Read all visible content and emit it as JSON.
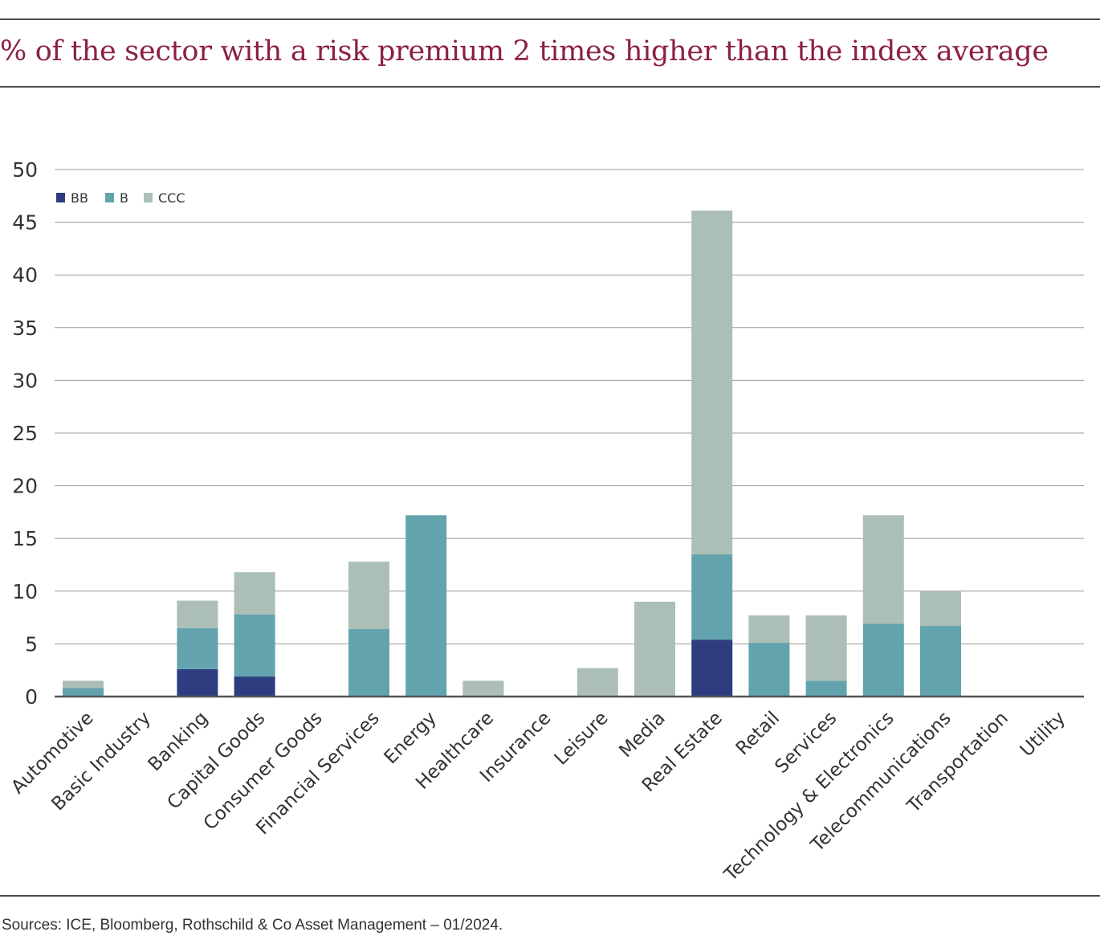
{
  "title": "% of the sector with a risk premium 2 times higher than the index average",
  "source": "Sources: ICE, Bloomberg, Rothschild & Co Asset Management – 01/2024.",
  "colors": {
    "title": "#8b1f47",
    "BB": "#2e3c80",
    "B": "#62a3ad",
    "CCC": "#abbfb6",
    "grid": "#9a9a9a"
  },
  "chart_data": {
    "type": "bar",
    "stacked": true,
    "categories": [
      "Automotive",
      "Basic Industry",
      "Banking",
      "Capital Goods",
      "Consumer Goods",
      "Financial Services",
      "Energy",
      "Healthcare",
      "Insurance",
      "Leisure",
      "Media",
      "Real Estate",
      "Retail",
      "Services",
      "Technology & Electronics",
      "Telecommunications",
      "Transportation",
      "Utility"
    ],
    "series": [
      {
        "name": "BB",
        "color": "#2e3c80",
        "values": [
          0,
          0,
          2.6,
          1.9,
          0,
          0,
          0,
          0,
          0,
          0,
          0,
          5.4,
          0,
          0,
          0,
          0,
          0,
          0
        ]
      },
      {
        "name": "B",
        "color": "#62a3ad",
        "values": [
          0.8,
          0,
          3.9,
          5.9,
          0,
          6.4,
          17.2,
          0,
          0,
          0,
          0,
          8.1,
          5.1,
          1.5,
          6.9,
          6.7,
          0,
          0
        ]
      },
      {
        "name": "CCC",
        "color": "#abbfb6",
        "values": [
          0.7,
          0,
          2.6,
          4.0,
          0,
          6.4,
          0,
          1.5,
          0,
          2.7,
          9.0,
          32.6,
          2.6,
          6.2,
          10.3,
          3.3,
          0,
          0
        ]
      }
    ],
    "yticks": [
      0,
      5,
      10,
      15,
      20,
      25,
      30,
      35,
      40,
      45,
      50
    ],
    "ylim": [
      0,
      50
    ],
    "grid": true,
    "legend_position": "top-left"
  }
}
